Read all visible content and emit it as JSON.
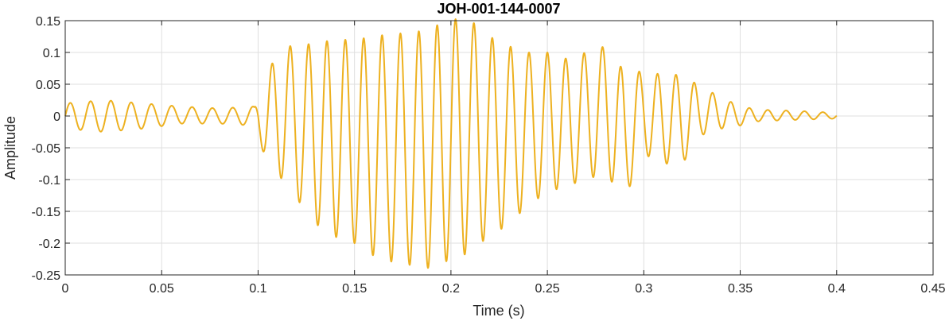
{
  "chart_data": {
    "type": "line",
    "title": "JOH-001-144-0007",
    "xlabel": "Time (s)",
    "ylabel": "Amplitude",
    "xlim": [
      0,
      0.45
    ],
    "ylim": [
      -0.25,
      0.15
    ],
    "xticks": [
      0,
      0.05,
      0.1,
      0.15,
      0.2,
      0.25,
      0.3,
      0.35,
      0.4,
      0.45
    ],
    "xtick_labels": [
      "0",
      "0.05",
      "0.1",
      "0.15",
      "0.2",
      "0.25",
      "0.3",
      "0.35",
      "0.4",
      "0.45"
    ],
    "yticks": [
      0.15,
      0.1,
      0.05,
      0,
      -0.05,
      -0.1,
      -0.15,
      -0.2,
      -0.25
    ],
    "ytick_labels": [
      "0.15",
      "0.1",
      "0.05",
      "0",
      "-0.05",
      "-0.1",
      "-0.15",
      "-0.2",
      "-0.25"
    ],
    "grid": true,
    "series": [
      {
        "color": "#EDB120",
        "x": [
          0,
          0.02,
          0.04,
          0.06,
          0.08,
          0.098,
          0.1,
          0.105,
          0.11,
          0.12,
          0.13,
          0.14,
          0.15,
          0.16,
          0.17,
          0.18,
          0.19,
          0.2,
          0.205,
          0.21,
          0.215,
          0.22,
          0.23,
          0.24,
          0.25,
          0.26,
          0.27,
          0.28,
          0.29,
          0.3,
          0.31,
          0.32,
          0.33,
          0.34,
          0.35,
          0.36,
          0.38,
          0.4
        ],
        "env_max": [
          0.02,
          0.025,
          0.02,
          0.015,
          0.012,
          0.015,
          0.03,
          0.06,
          0.11,
          0.11,
          0.115,
          0.12,
          0.12,
          0.125,
          0.13,
          0.13,
          0.14,
          0.15,
          0.155,
          0.15,
          0.14,
          0.125,
          0.11,
          0.1,
          0.1,
          0.09,
          0.1,
          0.11,
          0.07,
          0.07,
          0.065,
          0.065,
          0.045,
          0.03,
          0.015,
          0.01,
          0.008,
          0.005
        ],
        "env_min": [
          -0.02,
          -0.025,
          -0.02,
          -0.012,
          -0.012,
          -0.015,
          -0.03,
          -0.08,
          -0.09,
          -0.13,
          -0.17,
          -0.19,
          -0.2,
          -0.22,
          -0.23,
          -0.235,
          -0.24,
          -0.225,
          -0.22,
          -0.215,
          -0.2,
          -0.19,
          -0.17,
          -0.14,
          -0.12,
          -0.11,
          -0.1,
          -0.09,
          -0.13,
          -0.06,
          -0.075,
          -0.075,
          -0.03,
          -0.02,
          -0.015,
          -0.008,
          -0.006,
          -0.004
        ]
      }
    ]
  }
}
